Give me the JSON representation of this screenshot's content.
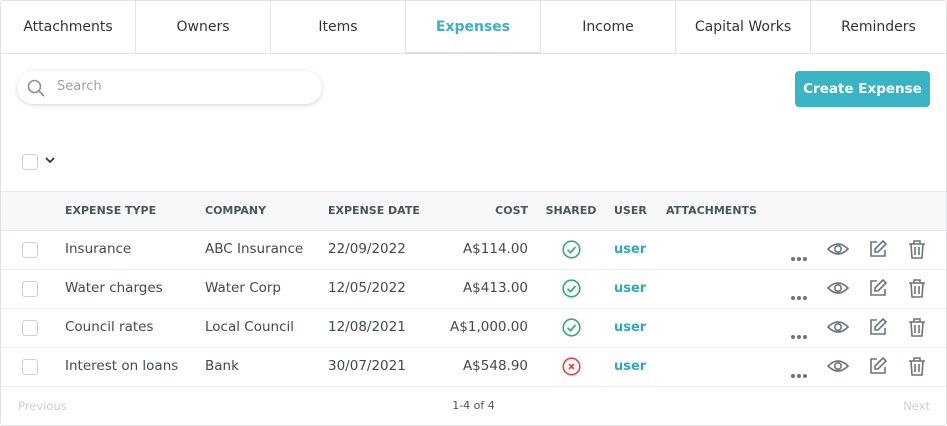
{
  "tabs": [
    "Attachments",
    "Owners",
    "Items",
    "Expenses",
    "Income",
    "Capital Works",
    "Reminders"
  ],
  "active_tab": 3,
  "search": {
    "placeholder": "Search"
  },
  "create_button": "Create Expense",
  "table": {
    "headers": [
      "EXPENSE TYPE",
      "COMPANY",
      "EXPENSE DATE",
      "COST",
      "SHARED",
      "USER",
      "ATTACHMENTS"
    ],
    "rows": [
      {
        "expense_type": "Insurance",
        "company": "ABC Insurance",
        "expense_date": "22/09/2022",
        "cost": "A$114.00",
        "shared": true,
        "user": "user"
      },
      {
        "expense_type": "Water charges",
        "company": "Water Corp",
        "expense_date": "12/05/2022",
        "cost": "A$413.00",
        "shared": true,
        "user": "user"
      },
      {
        "expense_type": "Council rates",
        "company": "Local Council",
        "expense_date": "12/08/2021",
        "cost": "A$1,000.00",
        "shared": true,
        "user": "user"
      },
      {
        "expense_type": "Interest on loans",
        "company": "Bank",
        "expense_date": "30/07/2021",
        "cost": "A$548.90",
        "shared": false,
        "user": "user"
      }
    ]
  },
  "pagination": {
    "previous": "Previous",
    "summary": "1-4 of 4",
    "next": "Next"
  }
}
